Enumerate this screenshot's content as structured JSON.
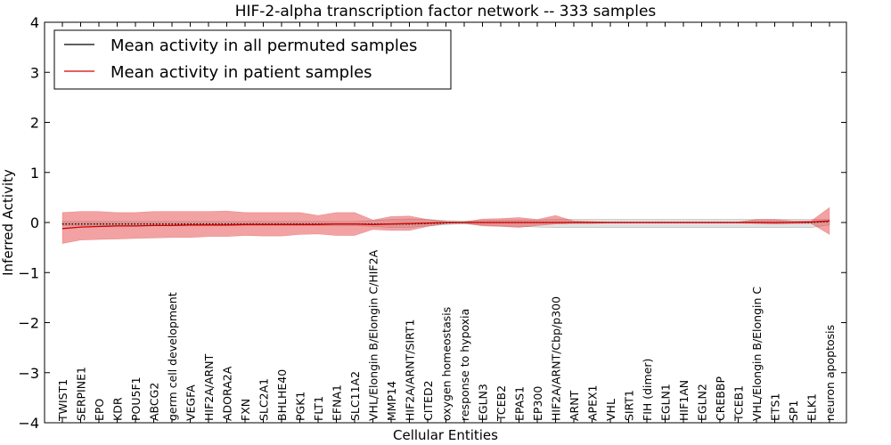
{
  "chart_data": {
    "type": "line",
    "title": "HIF-2-alpha transcription factor network -- 333 samples",
    "xlabel": "Cellular Entities",
    "ylabel": "Inferred Activity",
    "ylim": [
      -4,
      4
    ],
    "yticks": [
      -4,
      -3,
      -2,
      -1,
      0,
      1,
      2,
      3,
      4
    ],
    "ytick_labels": [
      "−4",
      "−3",
      "−2",
      "−1",
      "0",
      "1",
      "2",
      "3",
      "4"
    ],
    "grid": false,
    "legend_position": "top-left",
    "categories": [
      "TWIST1",
      "SERPINE1",
      "EPO",
      "KDR",
      "POU5F1",
      "ABCG2",
      "germ cell development",
      "VEGFA",
      "HIF2A/ARNT",
      "ADORA2A",
      "FXN",
      "SLC2A1",
      "BHLHE40",
      "PGK1",
      "FLT1",
      "EFNA1",
      "SLC11A2",
      "VHL/Elongin B/Elongin C/HIF2A",
      "MMP14",
      "HIF2A/ARNT/SIRT1",
      "CITED2",
      "oxygen homeostasis",
      "response to hypoxia",
      "EGLN3",
      "TCEB2",
      "EPAS1",
      "EP300",
      "HIF2A/ARNT/Cbp/p300",
      "ARNT",
      "APEX1",
      "VHL",
      "SIRT1",
      "FIH (dimer)",
      "EGLN1",
      "HIF1AN",
      "EGLN2",
      "CREBBP",
      "TCEB1",
      "VHL/Elongin B/Elongin C",
      "ETS1",
      "SP1",
      "ELK1",
      "neuron apoptosis"
    ],
    "series": [
      {
        "name": "Mean activity in all permuted samples",
        "color": "#000000",
        "band_color": "#bdbdbd",
        "values": [
          -0.03,
          -0.03,
          -0.03,
          -0.03,
          -0.03,
          -0.03,
          -0.03,
          -0.03,
          -0.03,
          -0.03,
          -0.03,
          -0.03,
          -0.03,
          -0.03,
          -0.03,
          -0.03,
          -0.03,
          -0.03,
          -0.03,
          -0.03,
          -0.02,
          -0.01,
          0.0,
          0.0,
          0.0,
          0.0,
          0.0,
          0.0,
          0.0,
          0.0,
          0.0,
          0.0,
          0.0,
          0.0,
          0.0,
          0.0,
          0.0,
          0.0,
          0.0,
          0.0,
          0.0,
          0.0,
          0.02
        ],
        "upper": [
          0.02,
          0.02,
          0.02,
          0.02,
          0.02,
          0.02,
          0.02,
          0.02,
          0.02,
          0.02,
          0.02,
          0.02,
          0.02,
          0.02,
          0.02,
          0.02,
          0.02,
          0.04,
          0.06,
          0.07,
          0.06,
          0.04,
          0.03,
          0.04,
          0.05,
          0.05,
          0.05,
          0.06,
          0.06,
          0.06,
          0.06,
          0.06,
          0.06,
          0.06,
          0.06,
          0.06,
          0.06,
          0.06,
          0.06,
          0.06,
          0.06,
          0.06,
          0.06
        ],
        "lower": [
          -0.06,
          -0.06,
          -0.06,
          -0.06,
          -0.06,
          -0.06,
          -0.06,
          -0.06,
          -0.06,
          -0.06,
          -0.06,
          -0.06,
          -0.06,
          -0.06,
          -0.06,
          -0.06,
          -0.06,
          -0.08,
          -0.1,
          -0.1,
          -0.07,
          -0.04,
          -0.03,
          -0.05,
          -0.07,
          -0.08,
          -0.09,
          -0.1,
          -0.1,
          -0.1,
          -0.1,
          -0.1,
          -0.1,
          -0.1,
          -0.1,
          -0.1,
          -0.1,
          -0.1,
          -0.1,
          -0.1,
          -0.1,
          -0.1,
          -0.05
        ]
      },
      {
        "name": "Mean activity in patient samples",
        "color": "#d40000",
        "band_color": "#e64545",
        "values": [
          -0.12,
          -0.09,
          -0.08,
          -0.07,
          -0.07,
          -0.06,
          -0.06,
          -0.05,
          -0.05,
          -0.05,
          -0.04,
          -0.04,
          -0.04,
          -0.04,
          -0.04,
          -0.03,
          -0.03,
          -0.04,
          -0.03,
          -0.02,
          -0.01,
          0.0,
          0.0,
          0.0,
          0.0,
          0.0,
          0.0,
          0.0,
          0.0,
          0.0,
          0.0,
          0.0,
          0.0,
          0.0,
          0.0,
          0.0,
          0.0,
          0.0,
          0.0,
          0.0,
          0.0,
          0.01,
          0.03
        ],
        "upper": [
          0.2,
          0.22,
          0.22,
          0.2,
          0.2,
          0.22,
          0.22,
          0.22,
          0.22,
          0.23,
          0.2,
          0.2,
          0.2,
          0.2,
          0.14,
          0.2,
          0.2,
          0.05,
          0.12,
          0.13,
          0.06,
          0.02,
          0.01,
          0.07,
          0.08,
          0.1,
          0.06,
          0.14,
          0.03,
          0.02,
          0.01,
          0.01,
          0.01,
          0.01,
          0.01,
          0.01,
          0.01,
          0.01,
          0.06,
          0.06,
          0.03,
          0.03,
          0.3
        ],
        "lower": [
          -0.42,
          -0.35,
          -0.34,
          -0.33,
          -0.32,
          -0.31,
          -0.3,
          -0.3,
          -0.28,
          -0.28,
          -0.26,
          -0.27,
          -0.27,
          -0.24,
          -0.23,
          -0.26,
          -0.26,
          -0.14,
          -0.16,
          -0.16,
          -0.08,
          -0.02,
          -0.01,
          -0.07,
          -0.08,
          -0.1,
          -0.06,
          -0.03,
          -0.02,
          -0.02,
          -0.01,
          -0.01,
          -0.01,
          -0.01,
          -0.01,
          -0.01,
          -0.01,
          -0.01,
          -0.02,
          -0.03,
          -0.02,
          -0.02,
          -0.24
        ]
      }
    ]
  }
}
